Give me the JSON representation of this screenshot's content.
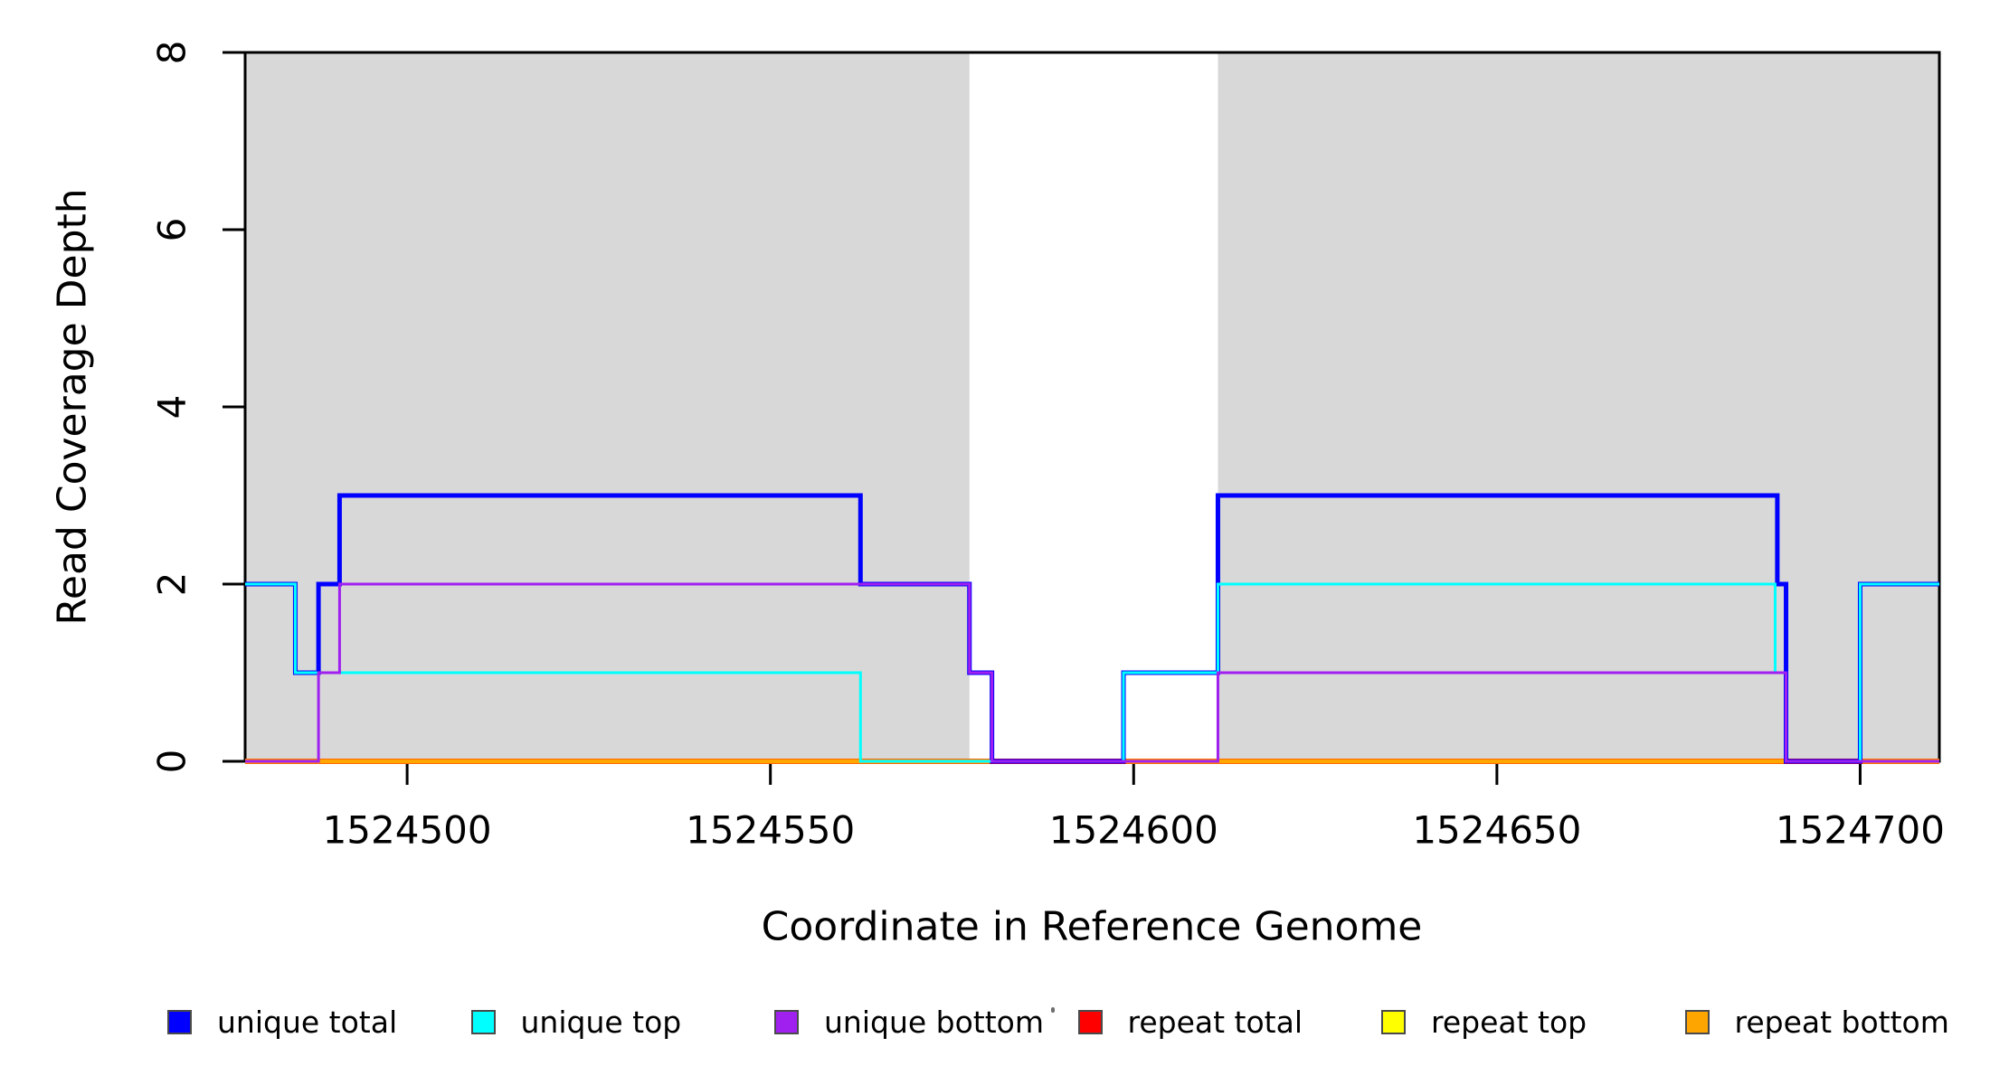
{
  "chart_data": {
    "type": "line",
    "subtype": "step-coverage",
    "title": "",
    "xlabel": "Coordinate in Reference Genome",
    "ylabel": "Read Coverage Depth",
    "xlim": [
      1524477.7,
      1524710.9
    ],
    "ylim": [
      0,
      8
    ],
    "grid": false,
    "axis_color": "#000000",
    "x_ticks": [
      {
        "value": 1524500,
        "label": "1524500"
      },
      {
        "value": 1524550,
        "label": "1524550"
      },
      {
        "value": 1524600,
        "label": "1524600"
      },
      {
        "value": 1524650,
        "label": "1524650"
      },
      {
        "value": 1524700,
        "label": "1524700"
      }
    ],
    "y_ticks": [
      {
        "value": 0,
        "label": "0"
      },
      {
        "value": 2,
        "label": "2"
      },
      {
        "value": 4,
        "label": "4"
      },
      {
        "value": 6,
        "label": "6"
      },
      {
        "value": 8,
        "label": "8"
      }
    ],
    "shaded_regions": [
      {
        "x0": 1524477.7,
        "x1": 1524577.4,
        "color": "#d8d8d8"
      },
      {
        "x0": 1524611.6,
        "x1": 1524710.9,
        "color": "#d8d8d8"
      }
    ],
    "series": [
      {
        "name": "repeat total",
        "color": "#ff0000",
        "width": 6,
        "steps": [
          [
            1524477.7,
            0
          ]
        ]
      },
      {
        "name": "repeat top",
        "color": "#ffff00",
        "width": 5,
        "steps": [
          [
            1524477.7,
            0
          ]
        ]
      },
      {
        "name": "repeat bottom",
        "color": "#ffa500",
        "width": 4.5,
        "steps": [
          [
            1524477.7,
            0
          ]
        ]
      },
      {
        "name": "unique total",
        "color": "#0000ff",
        "width": 5,
        "steps": [
          [
            1524477.7,
            2
          ],
          [
            1524484.6,
            1
          ],
          [
            1524487.8,
            2
          ],
          [
            1524490.7,
            3
          ],
          [
            1524562.4,
            2
          ],
          [
            1524577.4,
            1
          ],
          [
            1524580.5,
            0
          ],
          [
            1524598.6,
            1
          ],
          [
            1524611.6,
            3
          ],
          [
            1524688.6,
            2
          ],
          [
            1524689.8,
            0
          ],
          [
            1524700.0,
            2
          ]
        ]
      },
      {
        "name": "unique top",
        "color": "#00ffff",
        "width": 3,
        "steps": [
          [
            1524477.7,
            2
          ],
          [
            1524484.6,
            1
          ],
          [
            1524562.4,
            0
          ],
          [
            1524598.6,
            1
          ],
          [
            1524611.6,
            2
          ],
          [
            1524688.3,
            1
          ],
          [
            1524689.8,
            0
          ],
          [
            1524700.0,
            2
          ]
        ]
      },
      {
        "name": "unique bottom",
        "color": "#a020f0",
        "width": 3,
        "steps": [
          [
            1524477.7,
            0
          ],
          [
            1524487.8,
            1
          ],
          [
            1524490.7,
            2
          ],
          [
            1524577.4,
            1
          ],
          [
            1524580.5,
            0
          ],
          [
            1524611.6,
            1
          ],
          [
            1524689.8,
            0
          ]
        ]
      }
    ],
    "legend_position": "bottom"
  },
  "axes_titles": {
    "y": "Read Coverage Depth",
    "x": "Coordinate in Reference Genome"
  },
  "legend": {
    "items": [
      {
        "label": "unique total",
        "color": "#0000ff"
      },
      {
        "label": "unique top",
        "color": "#00ffff"
      },
      {
        "label": "unique bottom",
        "color": "#a020f0"
      },
      {
        "label": "repeat total",
        "color": "#ff0000"
      },
      {
        "label": "repeat top",
        "color": "#ffff00"
      },
      {
        "label": "repeat bottom",
        "color": "#ffa500"
      }
    ]
  }
}
